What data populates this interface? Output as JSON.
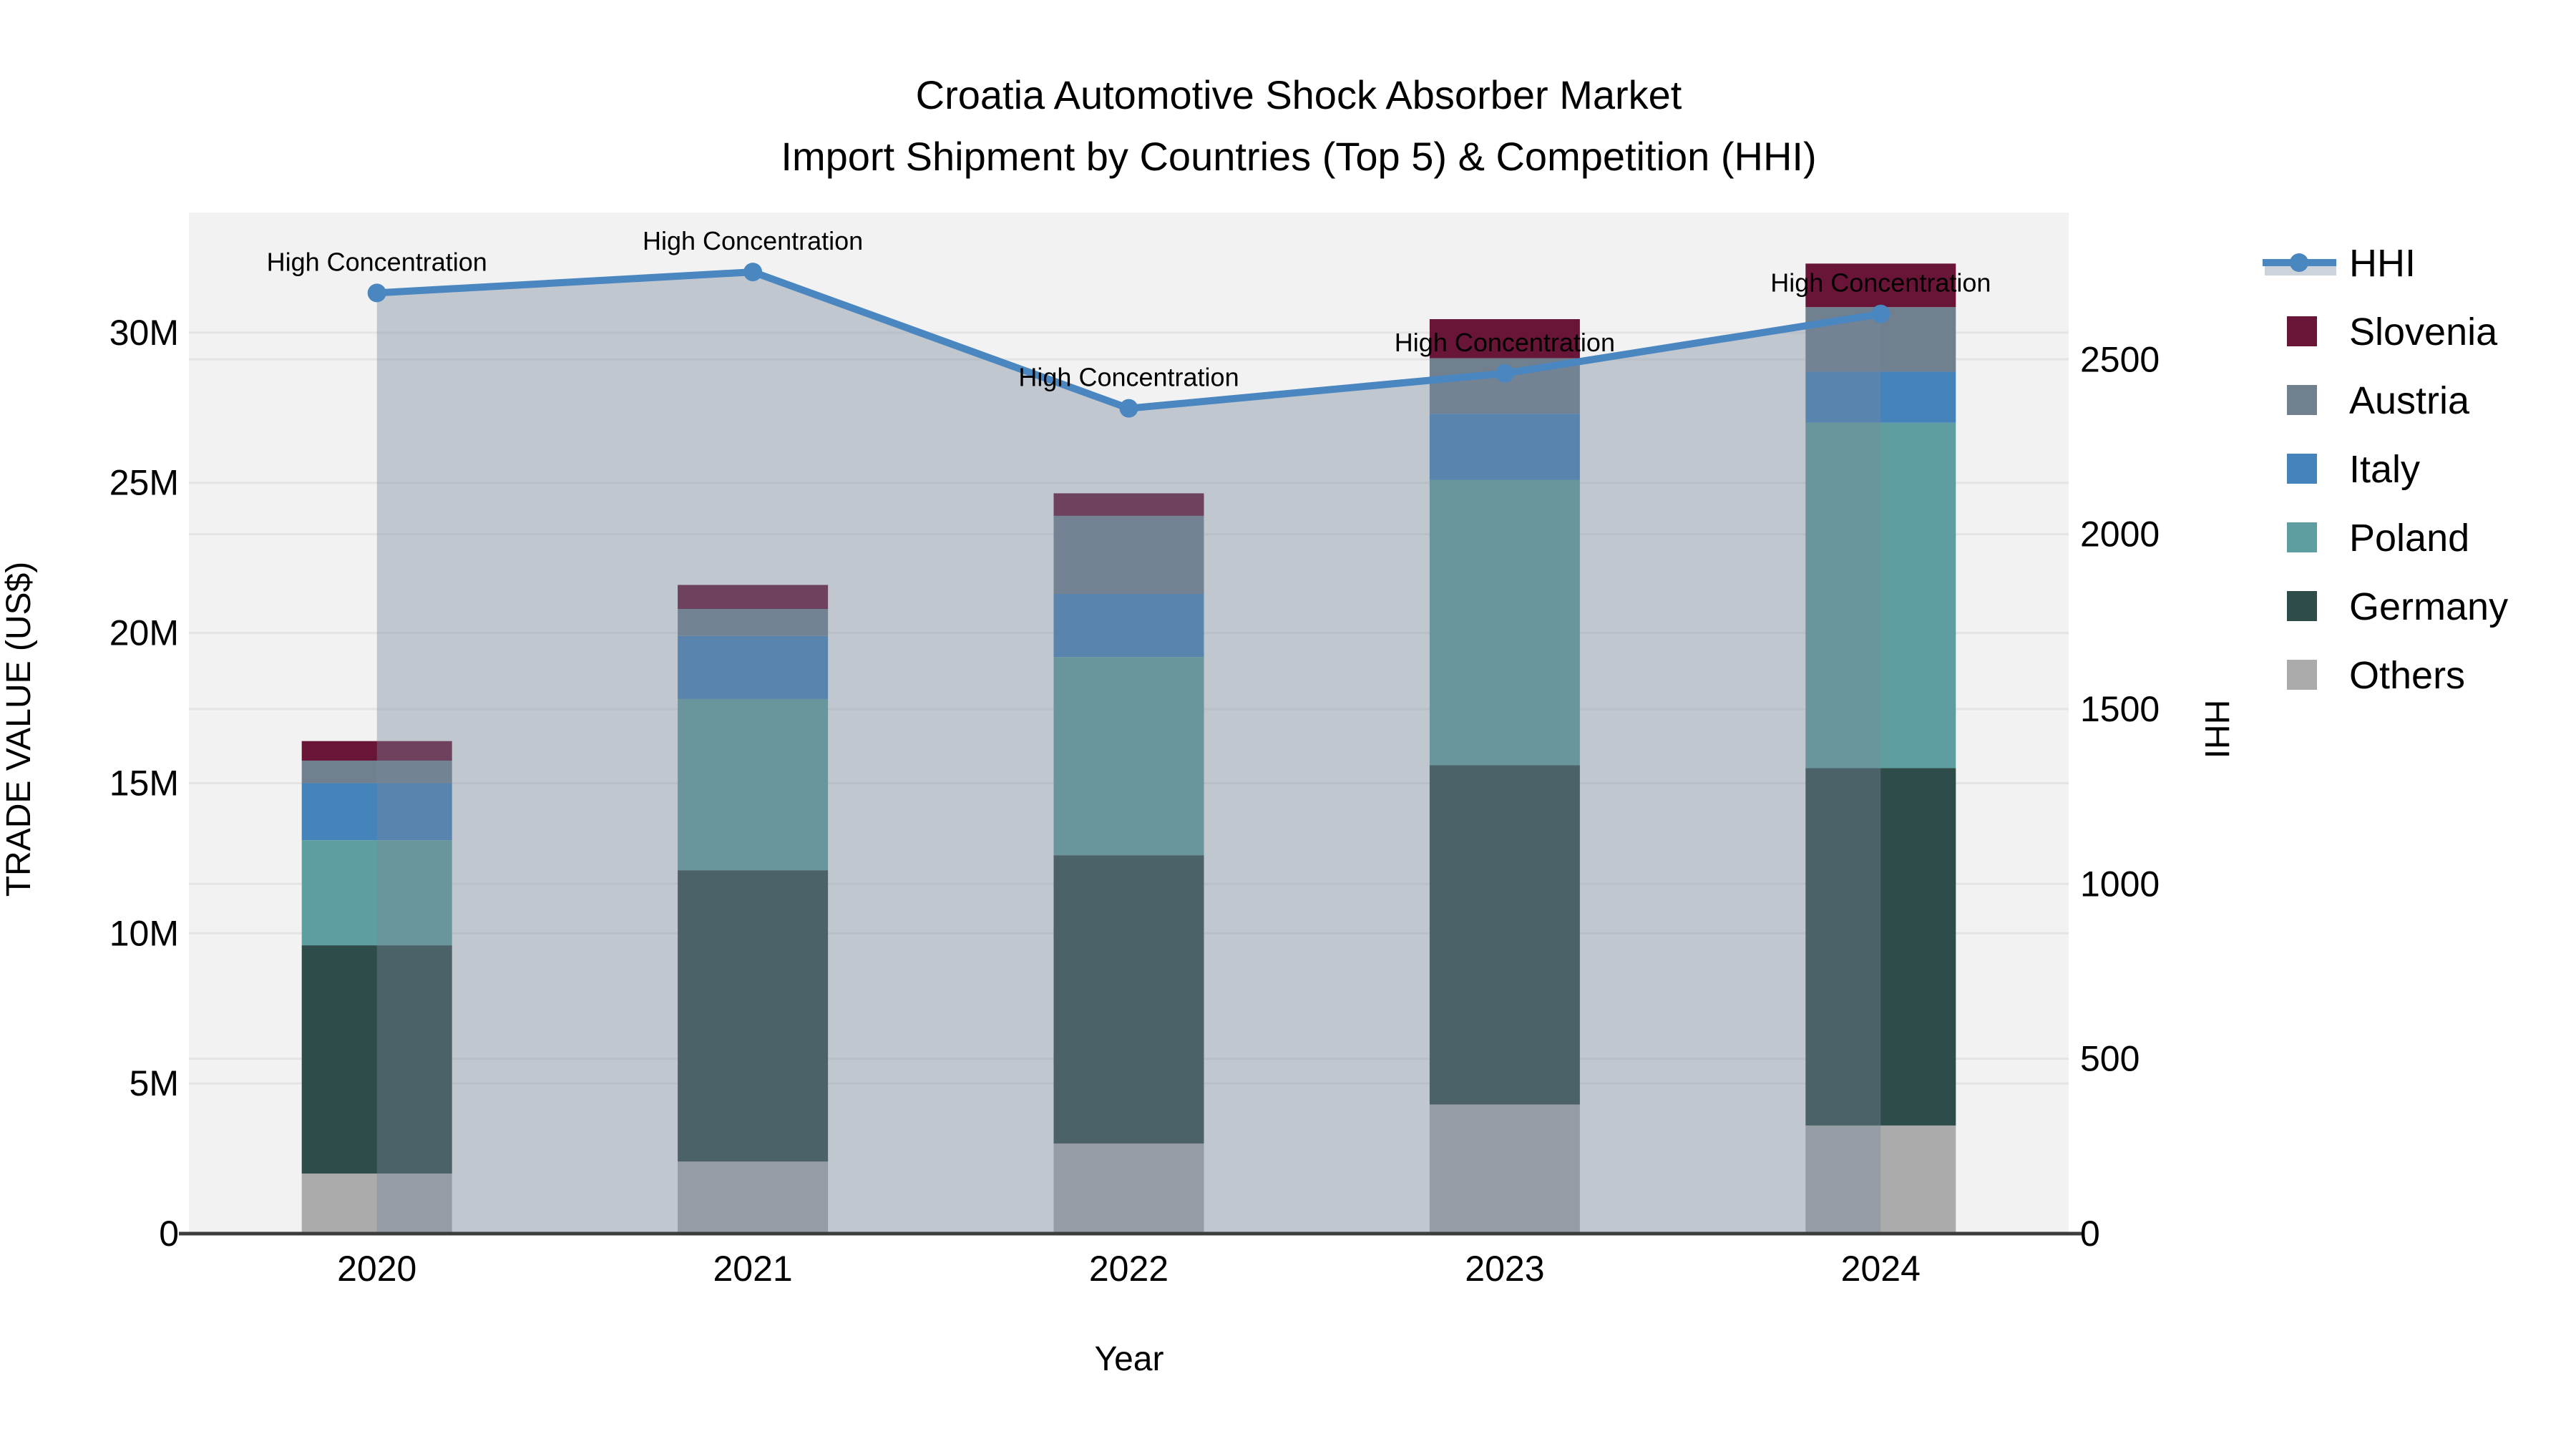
{
  "title": {
    "line1": "Croatia Automotive Shock Absorber Market",
    "line2": "Import Shipment by Countries (Top 5) & Competition (HHI)"
  },
  "colors": {
    "plot_bg": "#F2F2F2",
    "grid": "#E4E4E4",
    "axis_line": "#3C3C3C",
    "text": "#000000",
    "hhi_line": "#4A86C0",
    "area_fill": "rgba(119,136,153,0.40)",
    "legend_band": "#CCD3DA"
  },
  "chart_data": {
    "type": "bar",
    "subtype": "stacked-bars-with-line-overlay",
    "categories": [
      "2020",
      "2021",
      "2022",
      "2023",
      "2024"
    ],
    "bar_unit": "M US$",
    "series": [
      {
        "name": "Others",
        "color": "#ABABAB",
        "values": [
          2.0,
          2.4,
          3.0,
          4.3,
          3.6
        ]
      },
      {
        "name": "Germany",
        "color": "#2E4C49",
        "values": [
          7.6,
          9.7,
          9.6,
          11.3,
          11.9
        ]
      },
      {
        "name": "Poland",
        "color": "#5F9EA0",
        "values": [
          3.5,
          5.7,
          6.6,
          9.5,
          11.5
        ]
      },
      {
        "name": "Italy",
        "color": "#4583BB",
        "values": [
          1.9,
          2.1,
          2.1,
          2.2,
          1.7
        ]
      },
      {
        "name": "Austria",
        "color": "#70808F",
        "values": [
          0.75,
          0.9,
          2.6,
          1.85,
          2.15
        ]
      },
      {
        "name": "Slovenia",
        "color": "#681537",
        "values": [
          0.65,
          0.8,
          0.75,
          1.3,
          1.45
        ]
      }
    ],
    "line_series": {
      "name": "HHI",
      "values": [
        2690,
        2750,
        2360,
        2460,
        2630
      ],
      "annotations": [
        "High Concentration",
        "High Concentration",
        "High Concentration",
        "High Concentration",
        "High Concentration"
      ]
    },
    "y_left": {
      "title": "TRADE VALUE (US$)",
      "tick_labels": [
        "0",
        "5M",
        "10M",
        "15M",
        "20M",
        "25M",
        "30M"
      ],
      "tick_values": [
        0,
        5,
        10,
        15,
        20,
        25,
        30
      ],
      "range": [
        0,
        34
      ]
    },
    "y_right": {
      "title": "HHI",
      "tick_labels": [
        "0",
        "500",
        "1000",
        "1500",
        "2000",
        "2500"
      ],
      "tick_values": [
        0,
        500,
        1000,
        1500,
        2000,
        2500
      ],
      "range": [
        0,
        2920
      ]
    },
    "x_axis": {
      "title": "Year"
    },
    "legend": {
      "items": [
        {
          "label": "HHI",
          "type": "line",
          "color": "#4A86C0"
        },
        {
          "label": "Slovenia",
          "type": "swatch",
          "color": "#681537"
        },
        {
          "label": "Austria",
          "type": "swatch",
          "color": "#70808F"
        },
        {
          "label": "Italy",
          "type": "swatch",
          "color": "#4583BB"
        },
        {
          "label": "Poland",
          "type": "swatch",
          "color": "#5F9EA0"
        },
        {
          "label": "Germany",
          "type": "swatch",
          "color": "#2E4C49"
        },
        {
          "label": "Others",
          "type": "swatch",
          "color": "#ABABAB"
        }
      ]
    }
  }
}
